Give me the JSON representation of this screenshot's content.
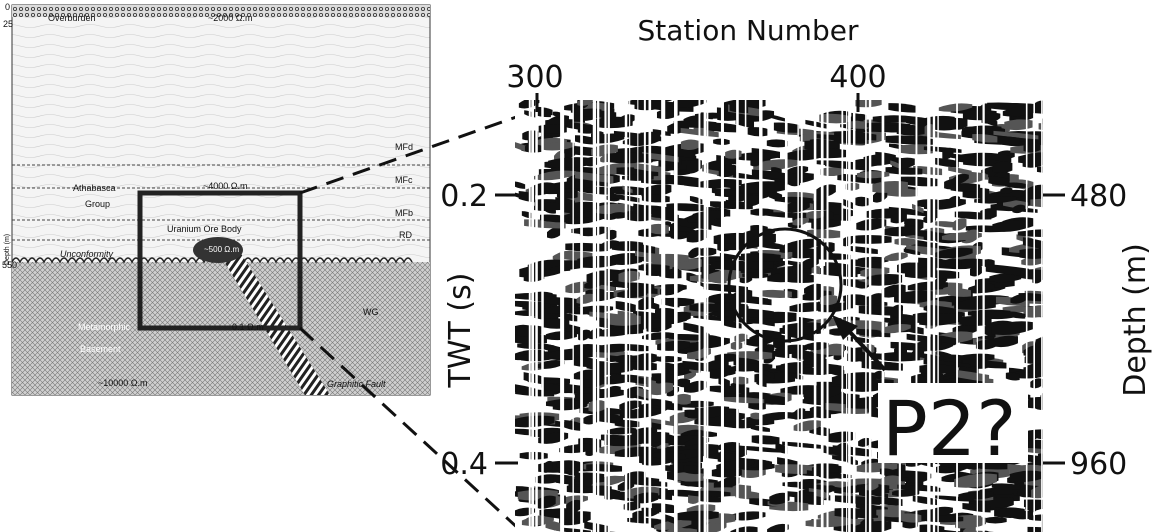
{
  "geologic_section": {
    "depth_axis": {
      "title": "Depth (m)",
      "ticks": [
        "0",
        "25",
        "550"
      ]
    },
    "labels": {
      "overburden": "Overburden",
      "overburden_res": "~2000 Ω.m",
      "mfd": "MFd",
      "mfc": "MFc",
      "mfb": "MFb",
      "rd": "RD",
      "wg": "WG",
      "athabasca": "Athabasca",
      "group": "Group",
      "athabasca_res": "~4000 Ω.m",
      "ore_body": "Uranium Ore Body",
      "ore_res": "~500 Ω.m",
      "unconformity": "Unconformity",
      "metamorphic": "Metamorphic",
      "basement": "Basement",
      "basement_res": "~10000 Ω.m",
      "fault_res": "0.1 Ω.m",
      "fault": "Graphitic Fault"
    }
  },
  "seismic_section": {
    "x_axis": {
      "title": "Station Number",
      "ticks": [
        "300",
        "400"
      ]
    },
    "y_axis": {
      "title": "TWT (s)",
      "ticks": [
        "0.2",
        "0.4"
      ]
    },
    "y2_axis": {
      "title": "Depth (m)",
      "ticks": [
        "480",
        "960"
      ]
    },
    "annotation": "P2?"
  }
}
